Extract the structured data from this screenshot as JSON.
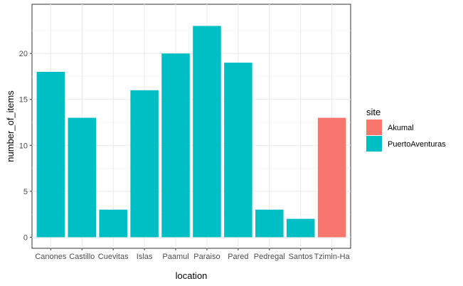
{
  "chart_data": {
    "type": "bar",
    "title": "",
    "xlabel": "location",
    "ylabel": "number_of_items",
    "categories": [
      "Canones",
      "Castillo",
      "Cuevitas",
      "Islas",
      "Paamul",
      "Paraiso",
      "Pared",
      "Pedregal",
      "Santos",
      "Tzimin-Ha"
    ],
    "values": [
      18,
      13,
      3,
      16,
      20,
      23,
      19,
      3,
      2,
      13
    ],
    "site": [
      "PuertoAventuras",
      "PuertoAventuras",
      "PuertoAventuras",
      "PuertoAventuras",
      "PuertoAventuras",
      "PuertoAventuras",
      "PuertoAventuras",
      "PuertoAventuras",
      "PuertoAventuras",
      "Akumal"
    ],
    "ylim": [
      0,
      24.15
    ],
    "yticks": [
      0,
      5,
      10,
      15,
      20
    ],
    "grid": true,
    "legend": {
      "title": "site",
      "position": "right",
      "entries": [
        {
          "name": "Akumal",
          "color": "#F8766D"
        },
        {
          "name": "PuertoAventuras",
          "color": "#00BFC4"
        }
      ]
    }
  }
}
